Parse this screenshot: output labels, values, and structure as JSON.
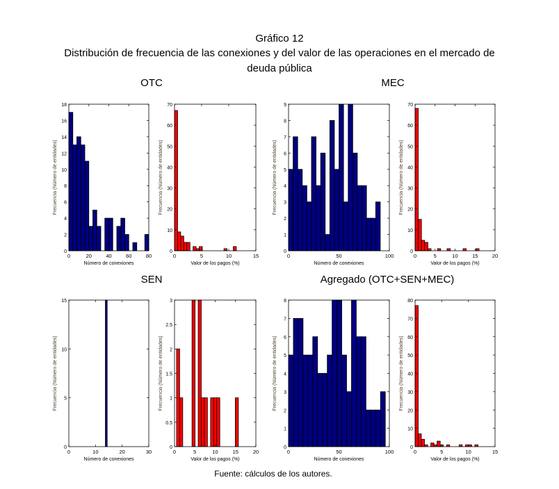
{
  "title": "Gráfico 12",
  "subtitle_line1": "Distribución de frecuencia de las conexiones y del valor de las operaciones en el mercado de",
  "subtitle_line2": "deuda pública",
  "source": "Fuente: cálculos de los autores.",
  "panels": [
    "OTC",
    "MEC",
    "SEN",
    "Agregado (OTC+SEN+MEC)"
  ],
  "colors": {
    "connections": "#00007f",
    "payments": "#ff0000"
  },
  "chart_data": [
    {
      "type": "bar",
      "panel": "OTC",
      "title": "",
      "xlabel": "Número de conexiones",
      "ylabel": "Frecuencia (Número de entidades)",
      "xlim": [
        0,
        80
      ],
      "ylim": [
        0,
        18
      ],
      "xticks": [
        0,
        20,
        40,
        60,
        80
      ],
      "yticks": [
        0,
        2,
        4,
        6,
        8,
        10,
        12,
        14,
        16,
        18
      ],
      "bin_start": 0,
      "bin_width": 4,
      "counts": [
        17,
        13,
        14,
        13,
        11,
        3,
        5,
        3,
        0,
        4,
        4,
        0,
        3,
        4,
        2,
        0,
        1,
        0,
        0,
        2
      ],
      "color": "connections"
    },
    {
      "type": "bar",
      "panel": "OTC",
      "title": "",
      "xlabel": "Valor de los pagos (%)",
      "ylabel": "Frecuencia (Número de entidades)",
      "xlim": [
        0,
        15
      ],
      "ylim": [
        0,
        70
      ],
      "xticks": [
        0,
        5,
        10,
        15
      ],
      "yticks": [
        0,
        10,
        20,
        30,
        40,
        50,
        60,
        70
      ],
      "bin_start": 0,
      "bin_width": 0.57,
      "counts": [
        67,
        9,
        7,
        4,
        4,
        0,
        2,
        1,
        2,
        0,
        0,
        0,
        0,
        0,
        0,
        0,
        1,
        0,
        0,
        2
      ],
      "color": "payments"
    },
    {
      "type": "bar",
      "panel": "MEC",
      "title": "",
      "xlabel": "Número de conexiones",
      "ylabel": "Frecuencia (Número de entidades)",
      "xlim": [
        0,
        100
      ],
      "ylim": [
        0,
        9
      ],
      "xticks": [
        0,
        50,
        100
      ],
      "yticks": [
        0,
        1,
        2,
        3,
        4,
        5,
        6,
        7,
        8,
        9
      ],
      "bin_start": 0,
      "bin_width": 4.55,
      "counts": [
        5,
        7,
        5,
        4,
        3,
        7,
        4,
        6,
        1,
        8,
        5,
        9,
        3,
        9,
        6,
        4,
        4,
        2,
        2,
        3
      ],
      "color": "connections"
    },
    {
      "type": "bar",
      "panel": "MEC",
      "title": "",
      "xlabel": "Valor de los pagos (%)",
      "ylabel": "Frecuencia (Número de entidades)",
      "xlim": [
        0,
        20
      ],
      "ylim": [
        0,
        70
      ],
      "xticks": [
        0,
        5,
        10,
        15,
        20
      ],
      "yticks": [
        0,
        10,
        20,
        30,
        40,
        50,
        60,
        70
      ],
      "bin_start": 0,
      "bin_width": 0.8,
      "counts": [
        68,
        15,
        5,
        4,
        1,
        0,
        0,
        1,
        0,
        0,
        1,
        0,
        0,
        0,
        0,
        1,
        0,
        0,
        0,
        1
      ],
      "color": "payments"
    },
    {
      "type": "bar",
      "panel": "SEN",
      "title": "",
      "xlabel": "Número de conexiones",
      "ylabel": "Frecuencia (Número de entidades)",
      "xlim": [
        0,
        30
      ],
      "ylim": [
        0,
        15
      ],
      "xticks": [
        0,
        10,
        20,
        30
      ],
      "yticks": [
        0,
        5,
        10,
        15
      ],
      "bin_start": 13.7,
      "bin_width": 0.7,
      "counts": [
        15
      ],
      "color": "connections"
    },
    {
      "type": "bar",
      "panel": "SEN",
      "title": "",
      "xlabel": "Valor de los pagos (%)",
      "ylabel": "Frecuencia (Número de entidades)",
      "xlim": [
        0,
        20
      ],
      "ylim": [
        0,
        3
      ],
      "xticks": [
        0,
        5,
        10,
        15,
        20
      ],
      "yticks": [
        0,
        0.5,
        1,
        1.5,
        2,
        2.5,
        3
      ],
      "bin_start": 0.5,
      "bin_width": 0.76,
      "counts": [
        2,
        1,
        0,
        0,
        0,
        3,
        0,
        3,
        1,
        1,
        0,
        1,
        1,
        1,
        0,
        0,
        0,
        0,
        0,
        1
      ],
      "color": "payments"
    },
    {
      "type": "bar",
      "panel": "Agregado (OTC+SEN+MEC)",
      "title": "",
      "xlabel": "Número de conexiones",
      "ylabel": "Frecuencia (Número de entidades)",
      "xlim": [
        0,
        100
      ],
      "ylim": [
        0,
        8
      ],
      "xticks": [
        0,
        50,
        100
      ],
      "yticks": [
        0,
        1,
        2,
        3,
        4,
        5,
        6,
        7,
        8
      ],
      "bin_start": 0,
      "bin_width": 4.8,
      "counts": [
        5,
        7,
        7,
        5,
        5,
        6,
        4,
        4,
        5,
        8,
        8,
        5,
        3,
        8,
        6,
        6,
        2,
        2,
        2,
        3
      ],
      "color": "connections"
    },
    {
      "type": "bar",
      "panel": "Agregado (OTC+SEN+MEC)",
      "title": "",
      "xlabel": "Valor de los pagos (%)",
      "ylabel": "Frecuencia (Número de entidades)",
      "xlim": [
        0,
        15
      ],
      "ylim": [
        0,
        80
      ],
      "xticks": [
        0,
        5,
        10,
        15
      ],
      "yticks": [
        0,
        10,
        20,
        30,
        40,
        50,
        60,
        70,
        80
      ],
      "bin_start": 0,
      "bin_width": 0.59,
      "counts": [
        77,
        7,
        4,
        1,
        0,
        2,
        1,
        3,
        1,
        0,
        1,
        0,
        0,
        0,
        1,
        0,
        1,
        1,
        0,
        1
      ],
      "color": "payments"
    }
  ]
}
